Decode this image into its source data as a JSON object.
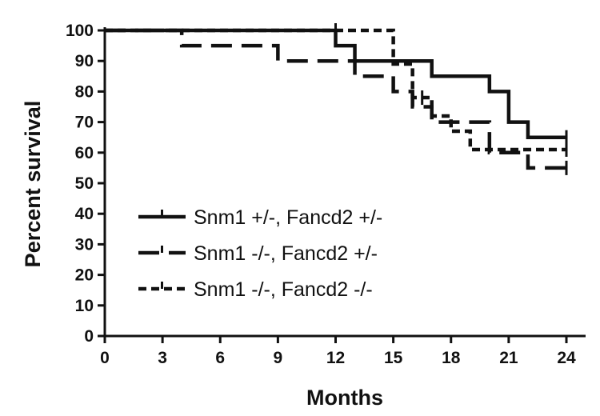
{
  "chart_data": {
    "type": "line",
    "subtype": "kaplan-meier-step",
    "xlabel": "Months",
    "ylabel": "Percent survival",
    "xlim": [
      0,
      24
    ],
    "ylim": [
      0,
      100
    ],
    "x_ticks": [
      0,
      3,
      6,
      9,
      12,
      15,
      18,
      21,
      24
    ],
    "y_ticks": [
      0,
      10,
      20,
      30,
      40,
      50,
      60,
      70,
      80,
      90,
      100
    ],
    "grid": false,
    "legend_position": "left",
    "series": [
      {
        "name": "Snm1 +/-, Fancd2 +/-",
        "style": "solid",
        "color": "#111111",
        "x": [
          0,
          12,
          13,
          17,
          20,
          21,
          22,
          24
        ],
        "y": [
          100,
          95,
          90,
          85,
          80,
          70,
          65,
          65
        ],
        "censored": [
          {
            "x": 24,
            "y": 65
          }
        ]
      },
      {
        "name": "Snm1 -/-, Fancd2 +/-",
        "style": "dashed",
        "color": "#111111",
        "x": [
          0,
          4,
          9,
          13,
          15,
          16,
          17,
          20,
          22,
          24
        ],
        "y": [
          100,
          95,
          90,
          85,
          80,
          75,
          70,
          60,
          55,
          55
        ],
        "censored": [
          {
            "x": 24,
            "y": 55
          }
        ]
      },
      {
        "name": "Snm1 -/-, Fancd2 -/-",
        "style": "dotted",
        "color": "#111111",
        "x": [
          0,
          15,
          16,
          17,
          18,
          19,
          24
        ],
        "y": [
          100,
          89,
          78,
          72,
          67,
          61,
          61
        ],
        "censored": [
          {
            "x": 24,
            "y": 61
          },
          {
            "x": 12,
            "y": 100
          },
          {
            "x": 16.5,
            "y": 78
          }
        ]
      }
    ]
  }
}
